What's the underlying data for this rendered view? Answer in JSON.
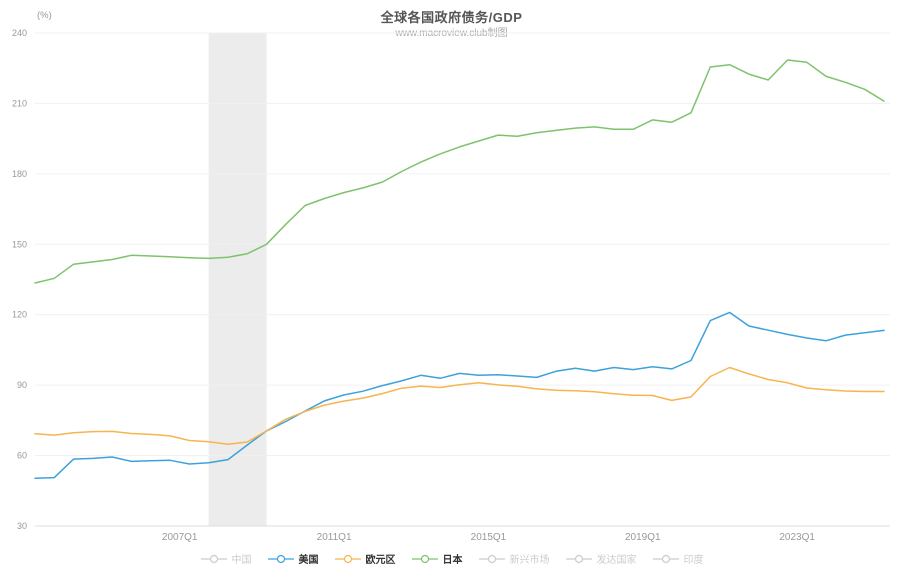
{
  "chart_data": {
    "type": "line",
    "title": "全球各国政府债务/GDP",
    "subtitle": "www.macroview.club制图",
    "unit_label": "(%)",
    "ylim": [
      30,
      240
    ],
    "y_ticks": [
      240,
      210,
      180,
      150,
      120,
      90,
      60,
      30
    ],
    "x_axis_ticks": [
      "2007Q1",
      "2011Q1",
      "2015Q1",
      "2019Q1",
      "2023Q1"
    ],
    "grid": "horizontal-only",
    "recession_band": {
      "from": "2007Q4",
      "to": "2009Q2",
      "color": "#ececec"
    },
    "x": [
      "2003Q2",
      "2003Q4",
      "2004Q2",
      "2004Q4",
      "2005Q2",
      "2005Q4",
      "2006Q2",
      "2006Q4",
      "2007Q2",
      "2007Q4",
      "2008Q2",
      "2008Q4",
      "2009Q2",
      "2009Q4",
      "2010Q2",
      "2010Q4",
      "2011Q2",
      "2011Q4",
      "2012Q2",
      "2012Q4",
      "2013Q2",
      "2013Q4",
      "2014Q2",
      "2014Q4",
      "2015Q2",
      "2015Q4",
      "2016Q2",
      "2016Q4",
      "2017Q2",
      "2017Q4",
      "2018Q2",
      "2018Q4",
      "2019Q2",
      "2019Q4",
      "2020Q2",
      "2020Q4",
      "2021Q2",
      "2021Q4",
      "2022Q2",
      "2022Q4",
      "2023Q2",
      "2023Q4",
      "2024Q2",
      "2024Q4",
      "2025Q2"
    ],
    "series": [
      {
        "key": "usa",
        "name": "美国",
        "color": "#3ca2dc",
        "active": true,
        "values": [
          50.3,
          50.6,
          58.5,
          58.8,
          59.4,
          57.5,
          57.8,
          58,
          56.4,
          56.9,
          58.3,
          64.5,
          70.5,
          74.5,
          79,
          83.3,
          85.8,
          87.4,
          89.8,
          91.8,
          94.2,
          92.9,
          95,
          94.2,
          94.4,
          93.9,
          93.3,
          95.9,
          97.2,
          96,
          97.5,
          96.6,
          97.8,
          96.9,
          100.5,
          117.5,
          121,
          115.2,
          113.4,
          111.6,
          110.1,
          108.9,
          111.3,
          112.3,
          113.3
        ]
      },
      {
        "key": "eurozone",
        "name": "欧元区",
        "color": "#f7b44f",
        "active": true,
        "values": [
          69.3,
          68.7,
          69.7,
          70.2,
          70.3,
          69.4,
          69,
          68.4,
          66.4,
          65.9,
          64.8,
          65.8,
          70.5,
          75.5,
          78.8,
          81.5,
          83.2,
          84.5,
          86.4,
          88.7,
          89.6,
          89,
          90.2,
          91,
          90.1,
          89.5,
          88.4,
          87.8,
          87.6,
          87.2,
          86.3,
          85.7,
          85.6,
          83.5,
          85,
          93.7,
          97.5,
          94.8,
          92.4,
          91,
          88.8,
          88,
          87.5,
          87.3,
          87.3
        ]
      },
      {
        "key": "japan",
        "name": "日本",
        "color": "#7ec36b",
        "active": true,
        "values": [
          133.5,
          135.5,
          141.5,
          142.5,
          143.5,
          145.3,
          145,
          144.7,
          144.3,
          144,
          144.5,
          146,
          150,
          158.5,
          166.5,
          169.5,
          172,
          174,
          176.5,
          181,
          185,
          188.5,
          191.5,
          194,
          196.5,
          196,
          197.5,
          198.5,
          199.5,
          200,
          199,
          199,
          203,
          202,
          206,
          225.5,
          226.5,
          222.5,
          220,
          228.5,
          227.5,
          221.5,
          219,
          216,
          211
        ]
      }
    ],
    "legend": {
      "position": "bottom",
      "inactive_color": "#cccccc",
      "items": [
        {
          "key": "china",
          "label": "中国",
          "active": false
        },
        {
          "key": "usa",
          "label": "美国",
          "active": true,
          "color": "#3ca2dc"
        },
        {
          "key": "eurozone",
          "label": "欧元区",
          "active": true,
          "color": "#f7b44f"
        },
        {
          "key": "japan",
          "label": "日本",
          "active": true,
          "color": "#7ec36b"
        },
        {
          "key": "emerging-markets",
          "label": "新兴市场",
          "active": false
        },
        {
          "key": "developed-countries",
          "label": "发达国家",
          "active": false
        },
        {
          "key": "india",
          "label": "印度",
          "active": false
        }
      ]
    },
    "colors": {
      "grid": "#f0f0f0",
      "axis": "#dddddd",
      "tick_text": "#999999",
      "band": "#ececec"
    }
  }
}
